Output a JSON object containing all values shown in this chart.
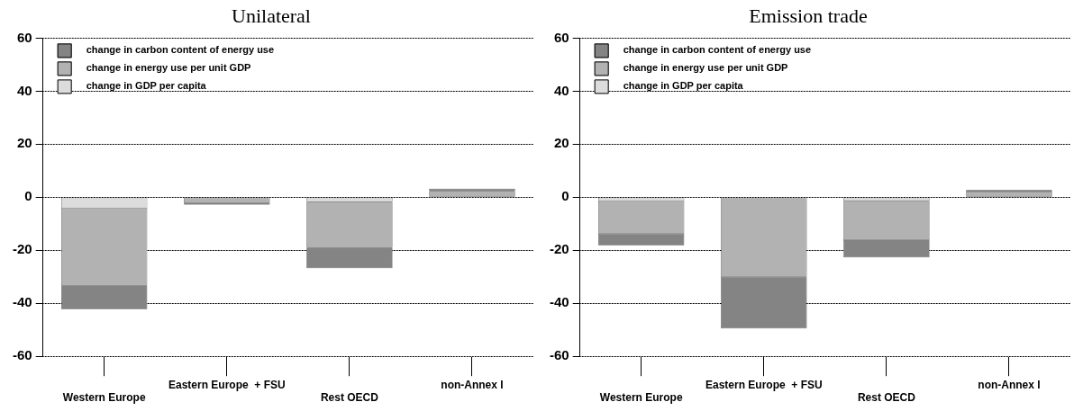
{
  "chart_data": [
    {
      "type": "bar",
      "title": "Unilateral",
      "stacked": true,
      "categories": [
        "Western Europe",
        "Eastern Europe  + FSU",
        "Rest OECD",
        "non-Annex I"
      ],
      "series": [
        {
          "name": "change in GDP per capita",
          "color": "#dcdcdc",
          "values": [
            -4.2,
            null,
            -1.8,
            null
          ]
        },
        {
          "name": "change in energy use per unit GDP",
          "color": "#b2b2b2",
          "values": [
            -29,
            -2,
            -17.3,
            2.3
          ]
        },
        {
          "name": "change in carbon content of energy use",
          "color": "#848484",
          "values": [
            -9,
            -0.8,
            -7.7,
            0.9
          ]
        }
      ],
      "ylim": [
        -60,
        60
      ],
      "yticks": [
        -60,
        -40,
        -20,
        0,
        20,
        40,
        60
      ],
      "grid": "y",
      "legend": "top left"
    },
    {
      "type": "bar",
      "title": "Emission trade",
      "stacked": true,
      "categories": [
        "Western Europe",
        "Eastern Europe  + FSU",
        "Rest OECD",
        "non-Annex I"
      ],
      "series": [
        {
          "name": "change in GDP per capita",
          "color": "#dcdcdc",
          "values": [
            -1.5,
            null,
            -1.3,
            null
          ]
        },
        {
          "name": "change in energy use per unit GDP",
          "color": "#b2b2b2",
          "values": [
            -12.2,
            -30,
            -14.9,
            2.1
          ]
        },
        {
          "name": "change in carbon content of energy use",
          "color": "#848484",
          "values": [
            -4.4,
            -19.5,
            -6.5,
            0.6
          ]
        }
      ],
      "ylim": [
        -60,
        60
      ],
      "yticks": [
        -60,
        -40,
        -20,
        0,
        20,
        40,
        60
      ],
      "grid": "y",
      "legend": "top left"
    }
  ]
}
